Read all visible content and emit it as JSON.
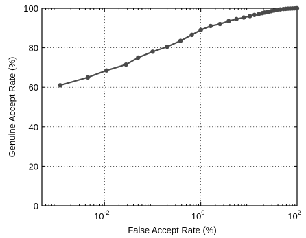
{
  "chart_data": {
    "type": "line",
    "title": "",
    "xlabel": "False Accept Rate (%)",
    "ylabel": "Genuine Accept Rate (%)",
    "xscale": "log",
    "xlim": [
      0.0005,
      100
    ],
    "ylim": [
      0,
      100
    ],
    "grid": true,
    "x_ticks": [
      {
        "value": 0.01,
        "base": "10",
        "exp": "-2"
      },
      {
        "value": 1,
        "base": "10",
        "exp": "0"
      },
      {
        "value": 100,
        "base": "10",
        "exp": "2"
      }
    ],
    "y_ticks": [
      0,
      20,
      40,
      60,
      80,
      100
    ],
    "series": [
      {
        "color": "#4a4a4a",
        "marker": "circle",
        "x": [
          0.0012,
          0.0045,
          0.011,
          0.028,
          0.05,
          0.1,
          0.2,
          0.38,
          0.65,
          1.0,
          1.6,
          2.5,
          3.8,
          5.5,
          7.8,
          10.5,
          13,
          16,
          19,
          21,
          23.5,
          26,
          29,
          33,
          38,
          45,
          52,
          58,
          65,
          72,
          80,
          88,
          96,
          100
        ],
        "y": [
          61,
          65,
          68.5,
          71.5,
          75,
          78,
          80.5,
          83.5,
          86.5,
          89,
          91,
          92,
          93.5,
          94.5,
          95.3,
          96,
          96.6,
          97,
          97.5,
          97.8,
          98,
          98.2,
          98.5,
          98.8,
          99.1,
          99.4,
          99.6,
          99.7,
          99.8,
          99.85,
          99.9,
          99.95,
          100,
          100
        ]
      }
    ]
  }
}
